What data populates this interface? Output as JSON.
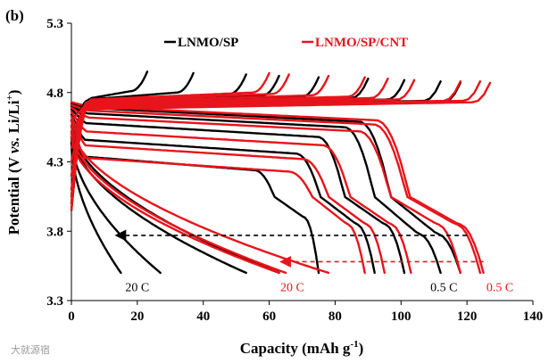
{
  "panel_label": "(b)",
  "watermark": "大就源宿",
  "colors": {
    "sp": "#000000",
    "cnt": "#e8141b",
    "axis": "#000000"
  },
  "chart_data": {
    "type": "line",
    "title": "",
    "xlabel": "Capacity (mAh g",
    "xlabel_sup": "-1",
    "xlabel_end": ")",
    "ylabel": "Potential (V ",
    "ylabel_vs": "vs.",
    "ylabel_li": " Li/Li",
    "ylabel_sup": "+",
    "ylabel_end": ")",
    "xlim": [
      0,
      140
    ],
    "ylim": [
      3.3,
      5.3
    ],
    "xticks": [
      0,
      20,
      40,
      60,
      80,
      100,
      120,
      140
    ],
    "yticks": [
      3.3,
      3.8,
      4.3,
      4.8,
      5.3
    ],
    "ytick_labels": [
      "3.3",
      "3.8",
      "4.3",
      "4.8",
      "5.3"
    ],
    "legend": [
      {
        "label": "LNMO/SP",
        "color": "#000000"
      },
      {
        "label": "LNMO/SP/CNT",
        "color": "#e8141b"
      }
    ],
    "annotations": [
      {
        "text": "20 C",
        "color": "#000000",
        "x": 20,
        "y": 3.4
      },
      {
        "text": "20 C",
        "color": "#e8141b",
        "x": 67,
        "y": 3.4
      },
      {
        "text": "0.5 C",
        "color": "#000000",
        "x": 113,
        "y": 3.4
      },
      {
        "text": "0.5 C",
        "color": "#e8141b",
        "x": 130,
        "y": 3.4
      }
    ],
    "arrows": [
      {
        "color": "#000000",
        "from_x": 120,
        "to_x": 14,
        "y": 3.77
      },
      {
        "color": "#e8141b",
        "from_x": 125,
        "to_x": 64,
        "y": 3.58
      }
    ],
    "series": [
      {
        "name": "LNMO/SP 0.5 C",
        "group": "sp",
        "mode": "discharge",
        "cap": 118,
        "vtop": 4.72,
        "plat": 4.69,
        "step": 3.78,
        "fv": 3.5
      },
      {
        "name": "LNMO/SP 1 C",
        "group": "sp",
        "mode": "discharge",
        "cap": 112,
        "vtop": 4.7,
        "plat": 4.65,
        "step": 3.78,
        "fv": 3.5
      },
      {
        "name": "LNMO/SP 2 C",
        "group": "sp",
        "mode": "discharge",
        "cap": 101,
        "vtop": 4.68,
        "plat": 4.58,
        "step": 3.85,
        "fv": 3.5
      },
      {
        "name": "LNMO/SP 5 C",
        "group": "sp",
        "mode": "discharge",
        "cap": 92,
        "vtop": 4.64,
        "plat": 4.46,
        "step": 3.85,
        "fv": 3.5
      },
      {
        "name": "LNMO/SP 8 C",
        "group": "sp",
        "mode": "discharge",
        "cap": 75,
        "vtop": 4.6,
        "plat": 4.34,
        "step": 3.9,
        "fv": 3.5
      },
      {
        "name": "LNMO/SP 10 C",
        "group": "sp",
        "mode": "discharge",
        "cap": 63,
        "vtop": 4.56,
        "plat": 4.22,
        "step": 3.9,
        "fv": 3.5
      },
      {
        "name": "LNMO/SP 15 C",
        "group": "sp",
        "mode": "discharge",
        "cap": 53,
        "vtop": 4.52,
        "plat": 4.1,
        "step": 3.9,
        "fv": 3.5
      },
      {
        "name": "LNMO/SP 18 C",
        "group": "sp",
        "mode": "discharge",
        "cap": 27,
        "vtop": 4.48,
        "plat": 3.95,
        "step": 3.8,
        "fv": 3.5
      },
      {
        "name": "LNMO/SP 20 C",
        "group": "sp",
        "mode": "discharge",
        "cap": 15,
        "vtop": 4.44,
        "plat": 3.8,
        "step": 3.7,
        "fv": 3.5
      },
      {
        "name": "LNMO/SP/CNT 0.5 C",
        "group": "cnt",
        "mode": "discharge",
        "cap": 125,
        "vtop": 4.73,
        "plat": 4.7,
        "step": 3.85,
        "fv": 3.5
      },
      {
        "name": "LNMO/SP/CNT 1 C",
        "group": "cnt",
        "mode": "discharge",
        "cap": 124,
        "vtop": 4.71,
        "plat": 4.67,
        "step": 3.85,
        "fv": 3.5
      },
      {
        "name": "LNMO/SP/CNT 2 C",
        "group": "cnt",
        "mode": "discharge",
        "cap": 118,
        "vtop": 4.69,
        "plat": 4.62,
        "step": 3.85,
        "fv": 3.5
      },
      {
        "name": "LNMO/SP/CNT 5 C",
        "group": "cnt",
        "mode": "discharge",
        "cap": 103,
        "vtop": 4.66,
        "plat": 4.52,
        "step": 3.85,
        "fv": 3.5
      },
      {
        "name": "LNMO/SP/CNT 8 C",
        "group": "cnt",
        "mode": "discharge",
        "cap": 95,
        "vtop": 4.63,
        "plat": 4.42,
        "step": 3.85,
        "fv": 3.5
      },
      {
        "name": "LNMO/SP/CNT 10 C",
        "group": "cnt",
        "mode": "discharge",
        "cap": 89,
        "vtop": 4.6,
        "plat": 4.33,
        "step": 3.85,
        "fv": 3.5
      },
      {
        "name": "LNMO/SP/CNT 15 C",
        "group": "cnt",
        "mode": "discharge",
        "cap": 78,
        "vtop": 4.56,
        "plat": 4.22,
        "step": 3.85,
        "fv": 3.5
      },
      {
        "name": "LNMO/SP/CNT 18 C",
        "group": "cnt",
        "mode": "discharge",
        "cap": 65,
        "vtop": 4.52,
        "plat": 4.1,
        "step": 3.85,
        "fv": 3.5
      },
      {
        "name": "LNMO/SP/CNT 20 C",
        "group": "cnt",
        "mode": "discharge",
        "cap": 63,
        "vtop": 4.48,
        "plat": 4.0,
        "step": 3.85,
        "fv": 3.5
      },
      {
        "name": "LNMO/SP charge 0.5 C",
        "group": "sp",
        "mode": "charge",
        "cap": 118,
        "plat": 4.72,
        "start": 3.95,
        "knee": 3
      },
      {
        "name": "LNMO/SP charge 1 C",
        "group": "sp",
        "mode": "charge",
        "cap": 112,
        "plat": 4.73,
        "start": 4.0,
        "knee": 3
      },
      {
        "name": "LNMO/SP charge 2 C",
        "group": "sp",
        "mode": "charge",
        "cap": 101,
        "plat": 4.74,
        "start": 4.05,
        "knee": 3
      },
      {
        "name": "LNMO/SP charge 5 C",
        "group": "sp",
        "mode": "charge",
        "cap": 90,
        "plat": 4.75,
        "start": 4.1,
        "knee": 4
      },
      {
        "name": "LNMO/SP charge 8 C",
        "group": "sp",
        "mode": "charge",
        "cap": 75,
        "plat": 4.76,
        "start": 4.2,
        "knee": 4
      },
      {
        "name": "LNMO/SP charge 10 C",
        "group": "sp",
        "mode": "charge",
        "cap": 63,
        "plat": 4.77,
        "start": 4.3,
        "knee": 4
      },
      {
        "name": "LNMO/SP charge 15 C",
        "group": "sp",
        "mode": "charge",
        "cap": 53,
        "plat": 4.78,
        "start": 4.4,
        "knee": 4
      },
      {
        "name": "LNMO/SP charge 18 C",
        "group": "sp",
        "mode": "charge",
        "cap": 37,
        "plat": 4.79,
        "start": 4.5,
        "knee": 5
      },
      {
        "name": "LNMO/SP charge 20 C",
        "group": "sp",
        "mode": "charge",
        "cap": 23,
        "plat": 4.8,
        "start": 4.6,
        "knee": 6
      },
      {
        "name": "LNMO/SP/CNT charge 0.5 C",
        "group": "cnt",
        "mode": "charge",
        "cap": 127,
        "plat": 4.72,
        "start": 3.95,
        "knee": 3
      },
      {
        "name": "LNMO/SP/CNT charge 1 C",
        "group": "cnt",
        "mode": "charge",
        "cap": 124,
        "plat": 4.73,
        "start": 4.0,
        "knee": 3
      },
      {
        "name": "LNMO/SP/CNT charge 2 C",
        "group": "cnt",
        "mode": "charge",
        "cap": 118,
        "plat": 4.73,
        "start": 4.05,
        "knee": 3
      },
      {
        "name": "LNMO/SP/CNT charge 5 C",
        "group": "cnt",
        "mode": "charge",
        "cap": 104,
        "plat": 4.74,
        "start": 4.1,
        "knee": 4
      },
      {
        "name": "LNMO/SP/CNT charge 8 C",
        "group": "cnt",
        "mode": "charge",
        "cap": 96,
        "plat": 4.75,
        "start": 4.2,
        "knee": 4
      },
      {
        "name": "LNMO/SP/CNT charge 10 C",
        "group": "cnt",
        "mode": "charge",
        "cap": 89,
        "plat": 4.76,
        "start": 4.3,
        "knee": 4
      },
      {
        "name": "LNMO/SP/CNT charge 15 C",
        "group": "cnt",
        "mode": "charge",
        "cap": 78,
        "plat": 4.77,
        "start": 4.4,
        "knee": 4
      },
      {
        "name": "LNMO/SP/CNT charge 18 C",
        "group": "cnt",
        "mode": "charge",
        "cap": 66,
        "plat": 4.78,
        "start": 4.5,
        "knee": 5
      },
      {
        "name": "LNMO/SP/CNT charge 20 C",
        "group": "cnt",
        "mode": "charge",
        "cap": 60,
        "plat": 4.79,
        "start": 4.6,
        "knee": 6
      }
    ]
  }
}
